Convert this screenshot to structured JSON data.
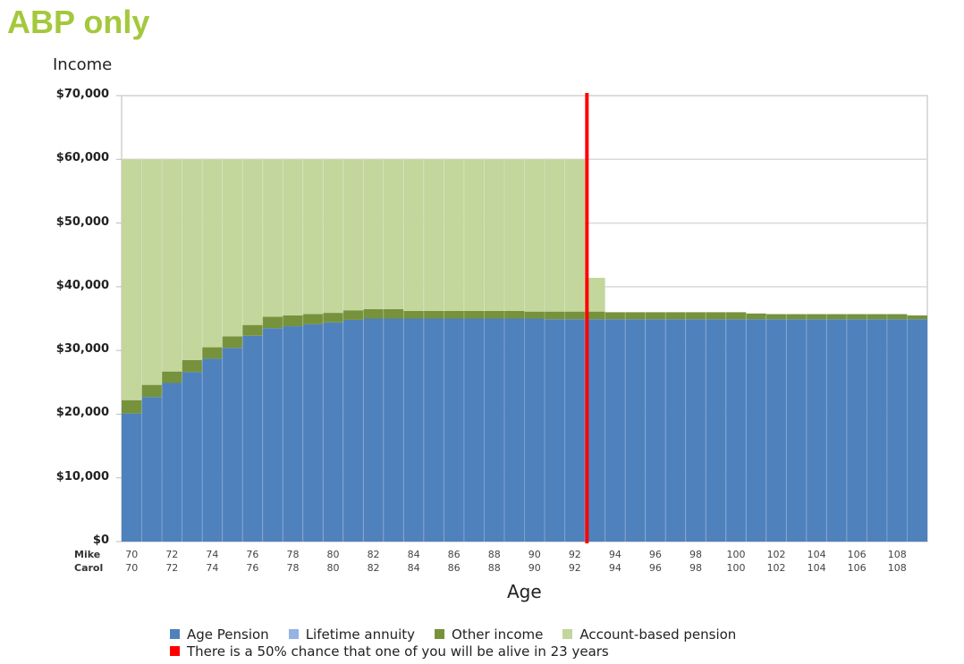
{
  "title": "ABP only",
  "chart_data": {
    "type": "bar",
    "stacked": true,
    "title": "ABP only",
    "ylabel": "Income",
    "xlabel": "Age",
    "ylim": [
      0,
      70000
    ],
    "yticks": [
      "$0",
      "$10,000",
      "$20,000",
      "$30,000",
      "$40,000",
      "$50,000",
      "$60,000",
      "$70,000"
    ],
    "x_rows": [
      {
        "name": "Mike",
        "ticks": [
          70,
          72,
          74,
          76,
          78,
          80,
          82,
          84,
          86,
          88,
          90,
          92,
          94,
          96,
          98,
          100,
          102,
          104,
          106,
          108
        ]
      },
      {
        "name": "Carol",
        "ticks": [
          70,
          72,
          74,
          76,
          78,
          80,
          82,
          84,
          86,
          88,
          90,
          92,
          94,
          96,
          98,
          100,
          102,
          104,
          106,
          108
        ]
      }
    ],
    "categories": [
      70,
      71,
      72,
      73,
      74,
      75,
      76,
      77,
      78,
      79,
      80,
      81,
      82,
      83,
      84,
      85,
      86,
      87,
      88,
      89,
      90,
      91,
      92,
      93,
      94,
      95,
      96,
      97,
      98,
      99,
      100,
      101,
      102,
      103,
      104,
      105,
      106,
      107,
      108,
      109
    ],
    "series": [
      {
        "name": "Age Pension",
        "color": "#4f81bd",
        "values": [
          20100,
          22700,
          24900,
          26600,
          28700,
          30400,
          32300,
          33500,
          33800,
          34100,
          34400,
          34800,
          35000,
          35000,
          35000,
          35000,
          35000,
          35000,
          35000,
          35000,
          35000,
          34900,
          34900,
          34900,
          34900,
          34900,
          34900,
          34900,
          34900,
          34900,
          34900,
          34900,
          34900,
          34900,
          34900,
          34900,
          34900,
          34900,
          34900,
          34900
        ]
      },
      {
        "name": "Lifetime annuity",
        "color": "#95b3e3",
        "values": [
          0,
          0,
          0,
          0,
          0,
          0,
          0,
          0,
          0,
          0,
          0,
          0,
          0,
          0,
          0,
          0,
          0,
          0,
          0,
          0,
          0,
          0,
          0,
          0,
          0,
          0,
          0,
          0,
          0,
          0,
          0,
          0,
          0,
          0,
          0,
          0,
          0,
          0,
          0,
          0
        ]
      },
      {
        "name": "Other income",
        "color": "#76923c",
        "values": [
          2100,
          1900,
          1800,
          1900,
          1800,
          1800,
          1700,
          1800,
          1700,
          1600,
          1500,
          1500,
          1500,
          1500,
          1200,
          1200,
          1200,
          1200,
          1200,
          1200,
          1100,
          1200,
          1200,
          1200,
          1100,
          1100,
          1100,
          1100,
          1100,
          1100,
          1100,
          900,
          800,
          800,
          800,
          800,
          800,
          800,
          800,
          600
        ]
      },
      {
        "name": "Account-based pension",
        "color": "#c3d69b",
        "values": [
          37800,
          35400,
          33300,
          31500,
          29500,
          27800,
          26000,
          24700,
          24500,
          24300,
          24100,
          23700,
          23500,
          23500,
          23800,
          23800,
          23800,
          23800,
          23800,
          23800,
          23900,
          23900,
          23900,
          5300,
          0,
          0,
          0,
          0,
          0,
          0,
          0,
          0,
          0,
          0,
          0,
          0,
          0,
          0,
          0,
          0
        ]
      }
    ],
    "annotations": [
      {
        "type": "vline",
        "x_age": 93,
        "color": "#ff0000",
        "label": "There is a 50% chance that one of you will be alive in 23 years"
      }
    ],
    "grid": "horizontal",
    "legend_position": "bottom"
  },
  "axis": {
    "ylabel": "Income",
    "xlabel": "Age",
    "row1": "Mike",
    "row2": "Carol"
  },
  "legend": {
    "items": [
      {
        "label": "Age Pension",
        "color": "#4f81bd"
      },
      {
        "label": "Lifetime annuity",
        "color": "#95b3e3"
      },
      {
        "label": "Other income",
        "color": "#76923c"
      },
      {
        "label": "Account-based pension",
        "color": "#c3d69b"
      }
    ],
    "marker_label": "There is a 50% chance that one of you will be alive in 23 years",
    "marker_color": "#ff0000"
  }
}
